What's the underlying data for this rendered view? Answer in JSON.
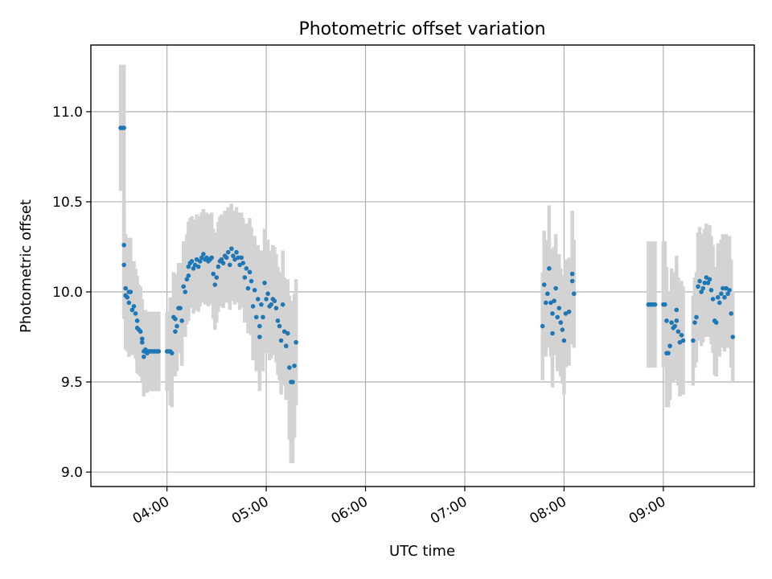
{
  "chart_data": {
    "type": "scatter",
    "title": "Photometric offset variation",
    "xlabel": "UTC time",
    "ylabel": "Photometric offset",
    "xlim": [
      "03:14",
      "09:55"
    ],
    "ylim": [
      8.92,
      11.37
    ],
    "grid": true,
    "x_ticks": [
      {
        "t": "04:00",
        "label": "04:00"
      },
      {
        "t": "05:00",
        "label": "05:00"
      },
      {
        "t": "06:00",
        "label": "06:00"
      },
      {
        "t": "07:00",
        "label": "07:00"
      },
      {
        "t": "08:00",
        "label": "08:00"
      },
      {
        "t": "09:00",
        "label": "09:00"
      }
    ],
    "y_ticks": [
      9.0,
      9.5,
      10.0,
      10.5,
      11.0
    ],
    "colors": {
      "points": "#1f77b4",
      "error_bars": "#d3d3d3"
    },
    "series": [
      {
        "marker": "points with error bars",
        "points": [
          {
            "t": "03:32",
            "y": 10.91,
            "err": 0.35
          },
          {
            "t": "03:33",
            "y": 10.91,
            "err": 0.35
          },
          {
            "t": "03:34",
            "y": 10.91,
            "err": 0.35
          },
          {
            "t": "03:34",
            "y": 10.26,
            "err": 0.3
          },
          {
            "t": "03:34",
            "y": 10.15,
            "err": 0.3
          },
          {
            "t": "03:35",
            "y": 10.02,
            "err": 0.3
          },
          {
            "t": "03:35",
            "y": 9.98,
            "err": 0.3
          },
          {
            "t": "03:36",
            "y": 9.97,
            "err": 0.3
          },
          {
            "t": "03:37",
            "y": 10.0,
            "err": 0.3
          },
          {
            "t": "03:37",
            "y": 9.94,
            "err": 0.3
          },
          {
            "t": "03:38",
            "y": 10.0,
            "err": 0.3
          },
          {
            "t": "03:39",
            "y": 9.9,
            "err": 0.25
          },
          {
            "t": "03:40",
            "y": 9.92,
            "err": 0.25
          },
          {
            "t": "03:41",
            "y": 9.88,
            "err": 0.25
          },
          {
            "t": "03:42",
            "y": 9.8,
            "err": 0.25
          },
          {
            "t": "03:42",
            "y": 9.84,
            "err": 0.25
          },
          {
            "t": "03:43",
            "y": 9.79,
            "err": 0.25
          },
          {
            "t": "03:44",
            "y": 9.78,
            "err": 0.25
          },
          {
            "t": "03:45",
            "y": 9.74,
            "err": 0.22
          },
          {
            "t": "03:45",
            "y": 9.72,
            "err": 0.22
          },
          {
            "t": "03:46",
            "y": 9.67,
            "err": 0.22
          },
          {
            "t": "03:46",
            "y": 9.64,
            "err": 0.22
          },
          {
            "t": "03:47",
            "y": 9.68,
            "err": 0.22
          },
          {
            "t": "03:48",
            "y": 9.66,
            "err": 0.22
          },
          {
            "t": "03:49",
            "y": 9.67,
            "err": 0.22
          },
          {
            "t": "03:50",
            "y": 9.67,
            "err": 0.22
          },
          {
            "t": "03:51",
            "y": 9.67,
            "err": 0.22
          },
          {
            "t": "03:52",
            "y": 9.67,
            "err": 0.22
          },
          {
            "t": "03:53",
            "y": 9.67,
            "err": 0.22
          },
          {
            "t": "03:54",
            "y": 9.67,
            "err": 0.22
          },
          {
            "t": "03:55",
            "y": 9.67,
            "err": 0.22
          },
          {
            "t": "04:00",
            "y": 9.67,
            "err": 0.22
          },
          {
            "t": "04:01",
            "y": 9.67,
            "err": 0.22
          },
          {
            "t": "04:02",
            "y": 9.67,
            "err": 0.3
          },
          {
            "t": "04:03",
            "y": 9.66,
            "err": 0.3
          },
          {
            "t": "04:04",
            "y": 9.86,
            "err": 0.25
          },
          {
            "t": "04:05",
            "y": 9.85,
            "err": 0.25
          },
          {
            "t": "04:05",
            "y": 9.78,
            "err": 0.25
          },
          {
            "t": "04:06",
            "y": 9.81,
            "err": 0.25
          },
          {
            "t": "04:07",
            "y": 9.91,
            "err": 0.25
          },
          {
            "t": "04:08",
            "y": 9.91,
            "err": 0.25
          },
          {
            "t": "04:09",
            "y": 9.84,
            "err": 0.25
          },
          {
            "t": "04:10",
            "y": 10.03,
            "err": 0.25
          },
          {
            "t": "04:11",
            "y": 10.0,
            "err": 0.25
          },
          {
            "t": "04:12",
            "y": 10.07,
            "err": 0.25
          },
          {
            "t": "04:13",
            "y": 10.09,
            "err": 0.25
          },
          {
            "t": "04:13",
            "y": 10.14,
            "err": 0.25
          },
          {
            "t": "04:14",
            "y": 10.16,
            "err": 0.25
          },
          {
            "t": "04:15",
            "y": 10.17,
            "err": 0.25
          },
          {
            "t": "04:16",
            "y": 10.13,
            "err": 0.25
          },
          {
            "t": "04:17",
            "y": 10.15,
            "err": 0.25
          },
          {
            "t": "04:18",
            "y": 10.18,
            "err": 0.25
          },
          {
            "t": "04:19",
            "y": 10.14,
            "err": 0.25
          },
          {
            "t": "04:20",
            "y": 10.17,
            "err": 0.25
          },
          {
            "t": "04:21",
            "y": 10.19,
            "err": 0.25
          },
          {
            "t": "04:22",
            "y": 10.21,
            "err": 0.25
          },
          {
            "t": "04:23",
            "y": 10.18,
            "err": 0.25
          },
          {
            "t": "04:24",
            "y": 10.19,
            "err": 0.25
          },
          {
            "t": "04:25",
            "y": 10.17,
            "err": 0.25
          },
          {
            "t": "04:26",
            "y": 10.18,
            "err": 0.25
          },
          {
            "t": "04:27",
            "y": 10.19,
            "err": 0.25
          },
          {
            "t": "04:28",
            "y": 10.1,
            "err": 0.25
          },
          {
            "t": "04:29",
            "y": 10.04,
            "err": 0.25
          },
          {
            "t": "04:30",
            "y": 10.08,
            "err": 0.25
          },
          {
            "t": "04:31",
            "y": 10.14,
            "err": 0.25
          },
          {
            "t": "04:32",
            "y": 10.17,
            "err": 0.25
          },
          {
            "t": "04:33",
            "y": 10.18,
            "err": 0.25
          },
          {
            "t": "04:34",
            "y": 10.16,
            "err": 0.25
          },
          {
            "t": "04:35",
            "y": 10.2,
            "err": 0.25
          },
          {
            "t": "04:36",
            "y": 10.19,
            "err": 0.25
          },
          {
            "t": "04:37",
            "y": 10.22,
            "err": 0.25
          },
          {
            "t": "04:38",
            "y": 10.15,
            "err": 0.25
          },
          {
            "t": "04:39",
            "y": 10.24,
            "err": 0.25
          },
          {
            "t": "04:40",
            "y": 10.2,
            "err": 0.25
          },
          {
            "t": "04:41",
            "y": 10.18,
            "err": 0.25
          },
          {
            "t": "04:42",
            "y": 10.22,
            "err": 0.25
          },
          {
            "t": "04:43",
            "y": 10.19,
            "err": 0.25
          },
          {
            "t": "04:44",
            "y": 10.15,
            "err": 0.25
          },
          {
            "t": "04:45",
            "y": 10.19,
            "err": 0.25
          },
          {
            "t": "04:46",
            "y": 10.16,
            "err": 0.25
          },
          {
            "t": "04:47",
            "y": 10.08,
            "err": 0.25
          },
          {
            "t": "04:48",
            "y": 10.13,
            "err": 0.25
          },
          {
            "t": "04:49",
            "y": 10.02,
            "err": 0.25
          },
          {
            "t": "04:50",
            "y": 10.11,
            "err": 0.3
          },
          {
            "t": "04:51",
            "y": 10.06,
            "err": 0.3
          },
          {
            "t": "04:52",
            "y": 9.92,
            "err": 0.3
          },
          {
            "t": "04:53",
            "y": 10.01,
            "err": 0.3
          },
          {
            "t": "04:54",
            "y": 9.86,
            "err": 0.3
          },
          {
            "t": "04:55",
            "y": 9.96,
            "err": 0.3
          },
          {
            "t": "04:56",
            "y": 9.81,
            "err": 0.3
          },
          {
            "t": "04:56",
            "y": 9.75,
            "err": 0.3
          },
          {
            "t": "04:57",
            "y": 9.93,
            "err": 0.3
          },
          {
            "t": "04:58",
            "y": 9.86,
            "err": 0.3
          },
          {
            "t": "04:59",
            "y": 10.05,
            "err": 0.3
          },
          {
            "t": "05:00",
            "y": 9.96,
            "err": 0.3
          },
          {
            "t": "05:01",
            "y": 9.99,
            "err": 0.3
          },
          {
            "t": "05:02",
            "y": 9.92,
            "err": 0.3
          },
          {
            "t": "05:03",
            "y": 9.93,
            "err": 0.3
          },
          {
            "t": "05:04",
            "y": 9.96,
            "err": 0.3
          },
          {
            "t": "05:05",
            "y": 9.95,
            "err": 0.3
          },
          {
            "t": "05:06",
            "y": 9.91,
            "err": 0.3
          },
          {
            "t": "05:07",
            "y": 9.84,
            "err": 0.3
          },
          {
            "t": "05:08",
            "y": 9.81,
            "err": 0.3
          },
          {
            "t": "05:09",
            "y": 9.73,
            "err": 0.3
          },
          {
            "t": "05:10",
            "y": 9.93,
            "err": 0.3
          },
          {
            "t": "05:11",
            "y": 9.78,
            "err": 0.3
          },
          {
            "t": "05:12",
            "y": 9.7,
            "err": 0.3
          },
          {
            "t": "05:13",
            "y": 9.77,
            "err": 0.3
          },
          {
            "t": "05:14",
            "y": 9.58,
            "err": 0.4
          },
          {
            "t": "05:15",
            "y": 9.5,
            "err": 0.45
          },
          {
            "t": "05:16",
            "y": 9.5,
            "err": 0.45
          },
          {
            "t": "05:17",
            "y": 9.59,
            "err": 0.4
          },
          {
            "t": "05:18",
            "y": 9.72,
            "err": 0.35
          },
          {
            "t": "07:47",
            "y": 9.81,
            "err": 0.3
          },
          {
            "t": "07:48",
            "y": 10.04,
            "err": 0.3
          },
          {
            "t": "07:49",
            "y": 9.94,
            "err": 0.3
          },
          {
            "t": "07:50",
            "y": 9.99,
            "err": 0.3
          },
          {
            "t": "07:51",
            "y": 10.13,
            "err": 0.35
          },
          {
            "t": "07:52",
            "y": 9.94,
            "err": 0.3
          },
          {
            "t": "07:53",
            "y": 9.88,
            "err": 0.3
          },
          {
            "t": "07:53",
            "y": 9.77,
            "err": 0.3
          },
          {
            "t": "07:54",
            "y": 9.95,
            "err": 0.3
          },
          {
            "t": "07:55",
            "y": 10.02,
            "err": 0.3
          },
          {
            "t": "07:56",
            "y": 9.86,
            "err": 0.3
          },
          {
            "t": "07:57",
            "y": 9.91,
            "err": 0.3
          },
          {
            "t": "07:58",
            "y": 9.83,
            "err": 0.3
          },
          {
            "t": "07:59",
            "y": 9.79,
            "err": 0.3
          },
          {
            "t": "08:00",
            "y": 9.73,
            "err": 0.3
          },
          {
            "t": "08:01",
            "y": 9.88,
            "err": 0.3
          },
          {
            "t": "08:03",
            "y": 9.89,
            "err": 0.3
          },
          {
            "t": "08:05",
            "y": 10.1,
            "err": 0.35
          },
          {
            "t": "08:05",
            "y": 10.06,
            "err": 0.35
          },
          {
            "t": "08:06",
            "y": 9.99,
            "err": 0.3
          },
          {
            "t": "08:51",
            "y": 9.93,
            "err": 0.35
          },
          {
            "t": "08:52",
            "y": 9.93,
            "err": 0.35
          },
          {
            "t": "08:53",
            "y": 9.93,
            "err": 0.35
          },
          {
            "t": "08:54",
            "y": 9.93,
            "err": 0.35
          },
          {
            "t": "08:55",
            "y": 9.93,
            "err": 0.35
          },
          {
            "t": "09:00",
            "y": 9.93,
            "err": 0.35
          },
          {
            "t": "09:01",
            "y": 9.93,
            "err": 0.35
          },
          {
            "t": "09:02",
            "y": 9.84,
            "err": 0.3
          },
          {
            "t": "09:02",
            "y": 9.66,
            "err": 0.3
          },
          {
            "t": "09:03",
            "y": 9.66,
            "err": 0.3
          },
          {
            "t": "09:04",
            "y": 9.7,
            "err": 0.3
          },
          {
            "t": "09:05",
            "y": 9.83,
            "err": 0.3
          },
          {
            "t": "09:06",
            "y": 9.8,
            "err": 0.3
          },
          {
            "t": "09:07",
            "y": 9.81,
            "err": 0.3
          },
          {
            "t": "09:08",
            "y": 9.84,
            "err": 0.3
          },
          {
            "t": "09:08",
            "y": 9.9,
            "err": 0.3
          },
          {
            "t": "09:09",
            "y": 9.78,
            "err": 0.3
          },
          {
            "t": "09:10",
            "y": 9.72,
            "err": 0.3
          },
          {
            "t": "09:11",
            "y": 9.76,
            "err": 0.3
          },
          {
            "t": "09:12",
            "y": 9.73,
            "err": 0.3
          },
          {
            "t": "09:18",
            "y": 9.73,
            "err": 0.25
          },
          {
            "t": "09:19",
            "y": 9.83,
            "err": 0.25
          },
          {
            "t": "09:20",
            "y": 9.86,
            "err": 0.25
          },
          {
            "t": "09:21",
            "y": 10.03,
            "err": 0.3
          },
          {
            "t": "09:22",
            "y": 10.06,
            "err": 0.3
          },
          {
            "t": "09:23",
            "y": 10.0,
            "err": 0.3
          },
          {
            "t": "09:24",
            "y": 10.02,
            "err": 0.3
          },
          {
            "t": "09:25",
            "y": 10.05,
            "err": 0.3
          },
          {
            "t": "09:26",
            "y": 10.08,
            "err": 0.3
          },
          {
            "t": "09:27",
            "y": 10.05,
            "err": 0.3
          },
          {
            "t": "09:28",
            "y": 10.07,
            "err": 0.3
          },
          {
            "t": "09:29",
            "y": 10.01,
            "err": 0.3
          },
          {
            "t": "09:30",
            "y": 9.96,
            "err": 0.3
          },
          {
            "t": "09:31",
            "y": 9.84,
            "err": 0.3
          },
          {
            "t": "09:32",
            "y": 9.83,
            "err": 0.3
          },
          {
            "t": "09:33",
            "y": 9.97,
            "err": 0.3
          },
          {
            "t": "09:34",
            "y": 9.94,
            "err": 0.3
          },
          {
            "t": "09:35",
            "y": 9.99,
            "err": 0.3
          },
          {
            "t": "09:36",
            "y": 10.02,
            "err": 0.3
          },
          {
            "t": "09:37",
            "y": 9.97,
            "err": 0.3
          },
          {
            "t": "09:38",
            "y": 10.02,
            "err": 0.3
          },
          {
            "t": "09:39",
            "y": 9.99,
            "err": 0.3
          },
          {
            "t": "09:40",
            "y": 10.01,
            "err": 0.3
          },
          {
            "t": "09:41",
            "y": 9.88,
            "err": 0.3
          },
          {
            "t": "09:42",
            "y": 9.75,
            "err": 0.25
          }
        ]
      }
    ]
  }
}
